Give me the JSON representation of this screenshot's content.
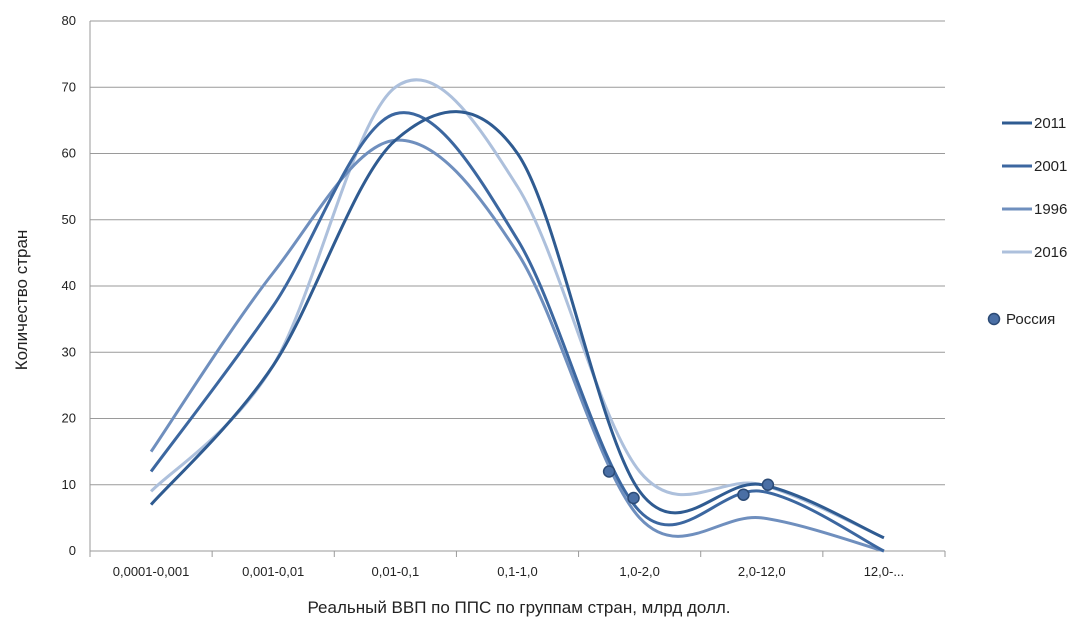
{
  "chart_data": {
    "type": "line",
    "xlabel": "Реальный ВВП по ППС по группам стран, млрд долл.",
    "ylabel": "Количество стран",
    "ylim": [
      0,
      80
    ],
    "yticks": [
      0,
      10,
      20,
      30,
      40,
      50,
      60,
      70,
      80
    ],
    "grid": true,
    "legend_position": "right",
    "categories": [
      "0,0001-0,001",
      "0,001-0,01",
      "0,01-0,1",
      "0,1-1,0",
      "1,0-2,0",
      "2,0-12,0",
      "12,0-..."
    ],
    "series": [
      {
        "name": "2011",
        "color": "#2f5b91",
        "width": 3,
        "values": [
          7,
          28,
          62,
          60,
          9,
          10,
          2
        ]
      },
      {
        "name": "2001",
        "color": "#3c67a0",
        "width": 3,
        "values": [
          12,
          37,
          66,
          47,
          6,
          9,
          0
        ]
      },
      {
        "name": "1996",
        "color": "#6f8fbe",
        "width": 3,
        "values": [
          15,
          42,
          62,
          45,
          5,
          5,
          0
        ]
      },
      {
        "name": "2016",
        "color": "#adc0dc",
        "width": 3,
        "values": [
          9,
          28,
          70,
          55,
          12,
          10,
          2
        ]
      }
    ],
    "markers": {
      "name": "Россия",
      "color": "#4a6fa5",
      "points": [
        {
          "x": 4.75,
          "y": 12
        },
        {
          "x": 4.95,
          "y": 8
        },
        {
          "x": 5.85,
          "y": 8.5
        },
        {
          "x": 6.05,
          "y": 10
        }
      ]
    }
  }
}
